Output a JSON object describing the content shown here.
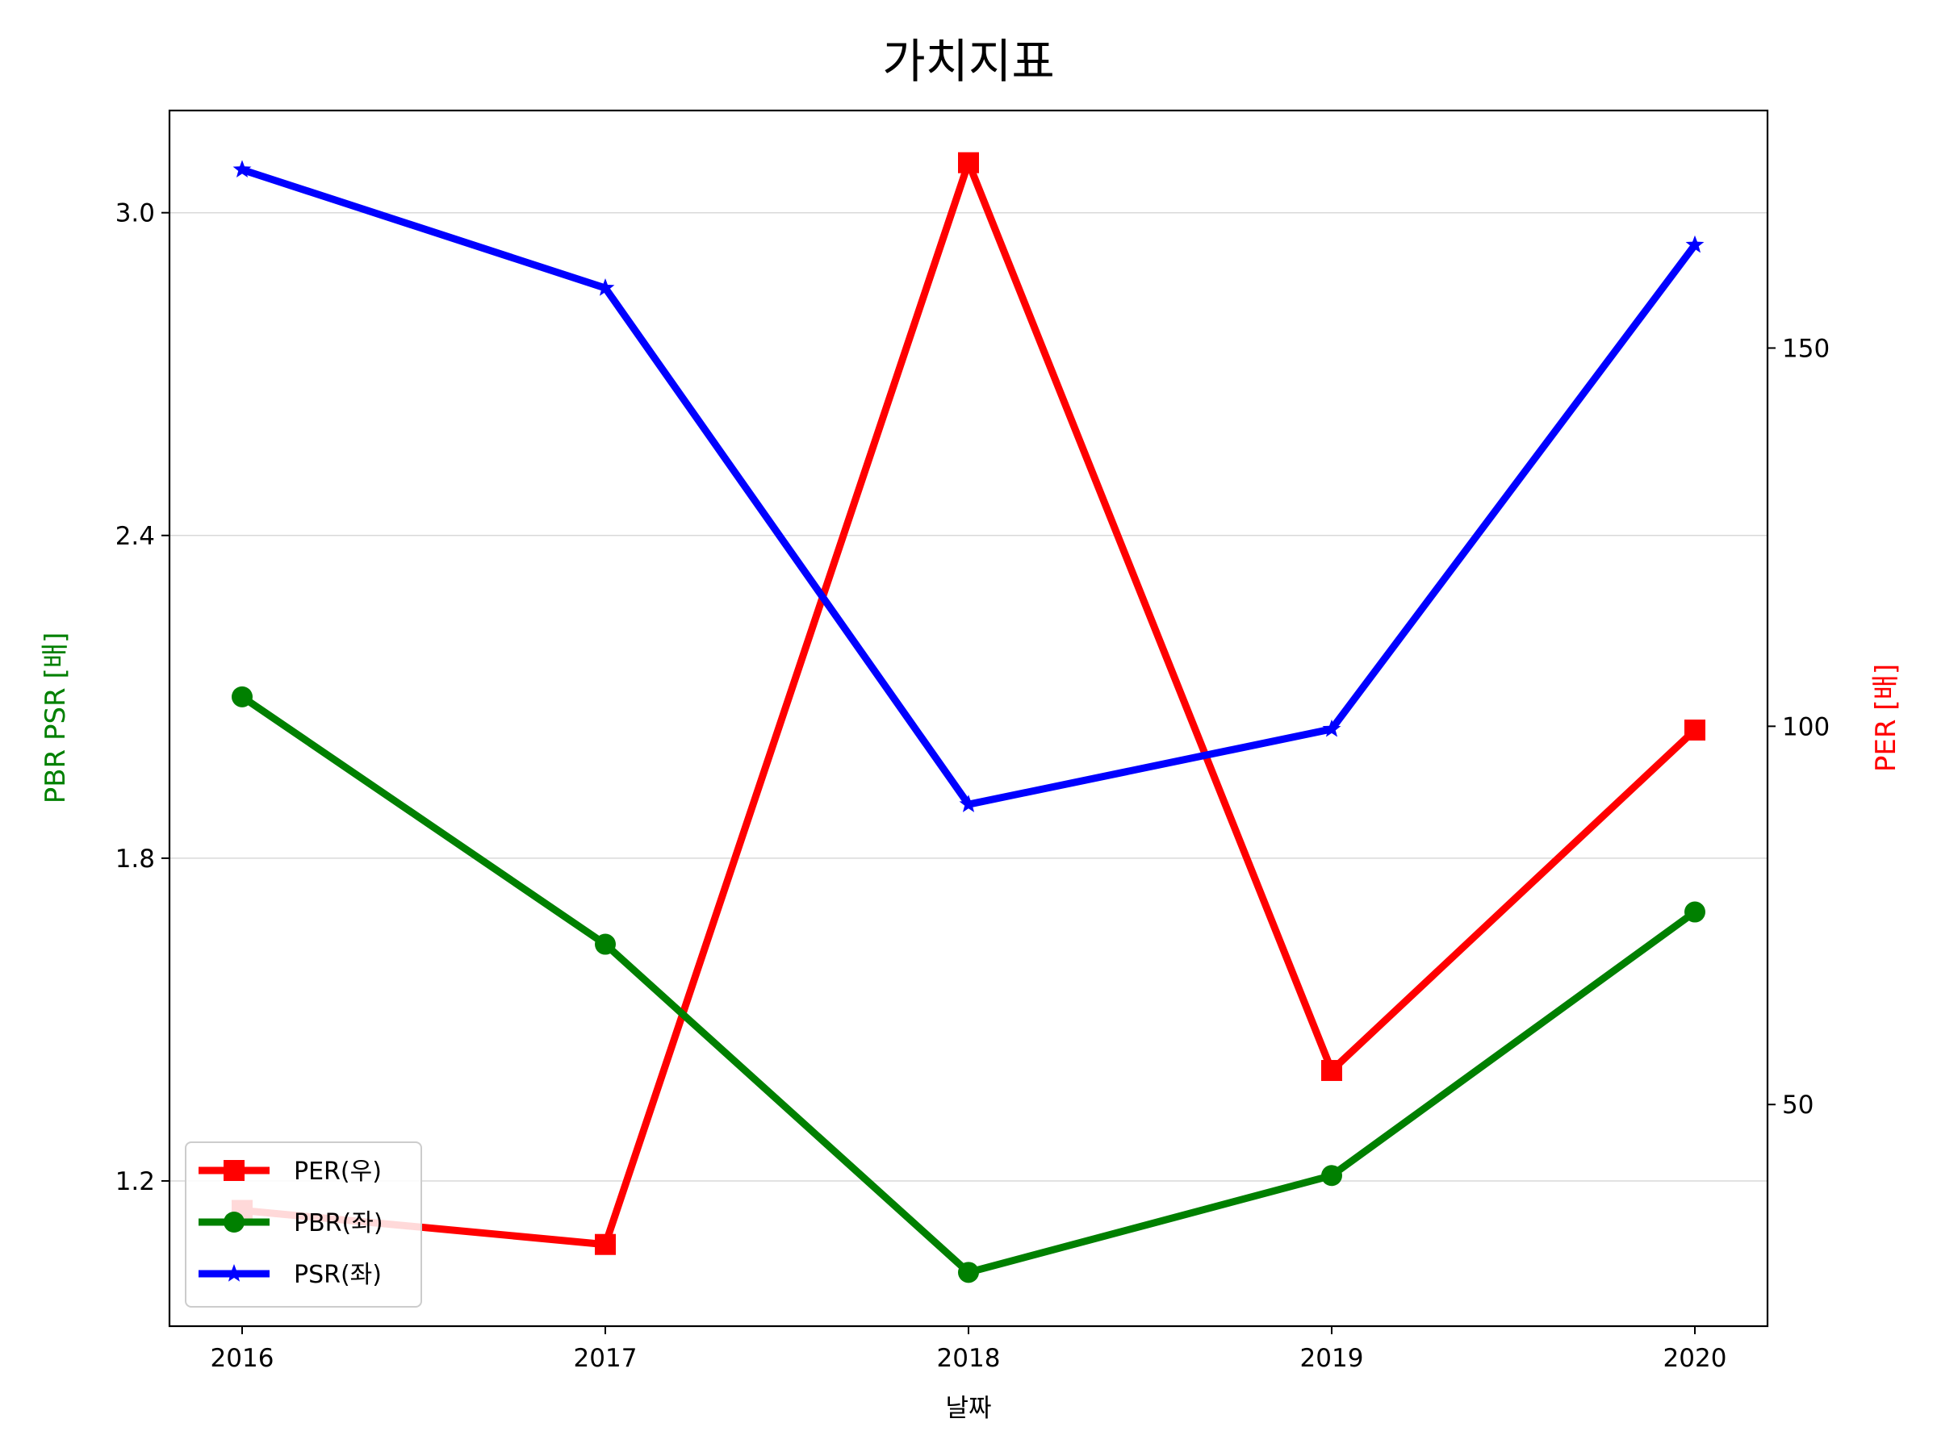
{
  "chart_data": {
    "type": "line",
    "title": "가치지표",
    "xlabel": "날짜",
    "ylabel_left": "PBR PSR [배]",
    "ylabel_right": "PER [배]",
    "ylabel_left_color": "#008000",
    "ylabel_right_color": "#ff0000",
    "categories": [
      "2016",
      "2017",
      "2018",
      "2019",
      "2020"
    ],
    "left_axis": {
      "ylim": [
        0.93,
        3.19
      ],
      "ticks": [
        1.2,
        1.8,
        2.4,
        3.0
      ],
      "tick_labels": [
        "1.2",
        "1.8",
        "2.4",
        "3.0"
      ],
      "grid": true
    },
    "right_axis": {
      "ylim": [
        20.7,
        181.4
      ],
      "ticks": [
        50,
        100,
        150
      ],
      "tick_labels": [
        "50",
        "100",
        "150"
      ],
      "grid": false
    },
    "series": [
      {
        "name": "PER(우)",
        "axis": "right",
        "color": "#ff0000",
        "marker": "square",
        "values": [
          36.0,
          31.5,
          174.5,
          54.5,
          99.5
        ]
      },
      {
        "name": "PBR(좌)",
        "axis": "left",
        "color": "#008000",
        "marker": "circle",
        "values": [
          2.1,
          1.64,
          1.03,
          1.21,
          1.7
        ]
      },
      {
        "name": "PSR(좌)",
        "axis": "left",
        "color": "#0000ff",
        "marker": "star",
        "values": [
          3.08,
          2.86,
          1.9,
          2.04,
          2.94
        ]
      }
    ],
    "legend": {
      "placement": "lower-left",
      "entries": [
        "PER(우)",
        "PBR(좌)",
        "PSR(좌)"
      ]
    }
  }
}
